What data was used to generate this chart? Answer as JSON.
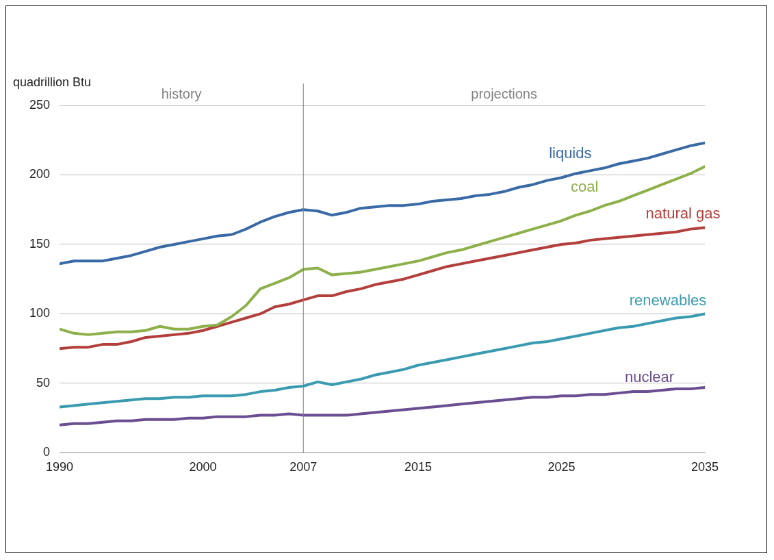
{
  "chart_data": {
    "type": "line",
    "ylabel": "quadrillion Btu",
    "x": [
      1990,
      1991,
      1992,
      1993,
      1994,
      1995,
      1996,
      1997,
      1998,
      1999,
      2000,
      2001,
      2002,
      2003,
      2004,
      2005,
      2006,
      2007,
      2008,
      2009,
      2010,
      2011,
      2012,
      2013,
      2014,
      2015,
      2016,
      2017,
      2018,
      2019,
      2020,
      2021,
      2022,
      2023,
      2024,
      2025,
      2026,
      2027,
      2028,
      2029,
      2030,
      2031,
      2032,
      2033,
      2034,
      2035
    ],
    "series": [
      {
        "name": "liquids",
        "color": "#3a6aa6",
        "values": [
          136,
          138,
          138,
          138,
          140,
          142,
          145,
          148,
          150,
          152,
          154,
          156,
          157,
          161,
          166,
          170,
          173,
          175,
          174,
          171,
          173,
          176,
          177,
          178,
          178,
          179,
          181,
          182,
          183,
          185,
          186,
          188,
          191,
          193,
          196,
          198,
          201,
          203,
          205,
          208,
          210,
          212,
          215,
          218,
          221,
          223
        ]
      },
      {
        "name": "coal",
        "color": "#8db04a",
        "values": [
          89,
          86,
          85,
          86,
          87,
          87,
          88,
          91,
          89,
          89,
          91,
          92,
          98,
          106,
          118,
          122,
          126,
          132,
          133,
          128,
          129,
          130,
          132,
          134,
          136,
          138,
          141,
          144,
          146,
          149,
          152,
          155,
          158,
          161,
          164,
          167,
          171,
          174,
          178,
          181,
          185,
          189,
          193,
          197,
          201,
          206
        ]
      },
      {
        "name": "natural gas",
        "color": "#b33f3c",
        "values": [
          75,
          76,
          76,
          78,
          78,
          80,
          83,
          84,
          85,
          86,
          88,
          91,
          94,
          97,
          100,
          105,
          107,
          110,
          113,
          113,
          116,
          118,
          121,
          123,
          125,
          128,
          131,
          134,
          136,
          138,
          140,
          142,
          144,
          146,
          148,
          150,
          151,
          153,
          154,
          155,
          156,
          157,
          158,
          159,
          161,
          162
        ]
      },
      {
        "name": "renewables",
        "color": "#3a9bb0",
        "values": [
          33,
          34,
          35,
          36,
          37,
          38,
          39,
          39,
          40,
          40,
          41,
          41,
          41,
          42,
          44,
          45,
          47,
          48,
          51,
          49,
          51,
          53,
          56,
          58,
          60,
          63,
          65,
          67,
          69,
          71,
          73,
          75,
          77,
          79,
          80,
          82,
          84,
          86,
          88,
          90,
          91,
          93,
          95,
          97,
          98,
          100
        ]
      },
      {
        "name": "nuclear",
        "color": "#6a4e91",
        "values": [
          20,
          21,
          21,
          22,
          23,
          23,
          24,
          24,
          24,
          25,
          25,
          26,
          26,
          26,
          27,
          27,
          28,
          27,
          27,
          27,
          27,
          28,
          29,
          30,
          31,
          32,
          33,
          34,
          35,
          36,
          37,
          38,
          39,
          40,
          40,
          41,
          41,
          42,
          42,
          43,
          44,
          44,
          45,
          46,
          46,
          47
        ]
      }
    ],
    "xlim": [
      1990,
      2035
    ],
    "xticks": [
      1990,
      2000,
      2007,
      2015,
      2025,
      2035
    ],
    "ylim": [
      0,
      250
    ],
    "yticks": [
      0,
      50,
      100,
      150,
      200,
      250
    ],
    "grid": "y",
    "legend": false,
    "marker": "none",
    "line_style": "solid",
    "ref_lines": [
      {
        "axis": "x",
        "value": 2007,
        "color": "#808080"
      }
    ],
    "annotations": [
      "history",
      "projections"
    ]
  }
}
